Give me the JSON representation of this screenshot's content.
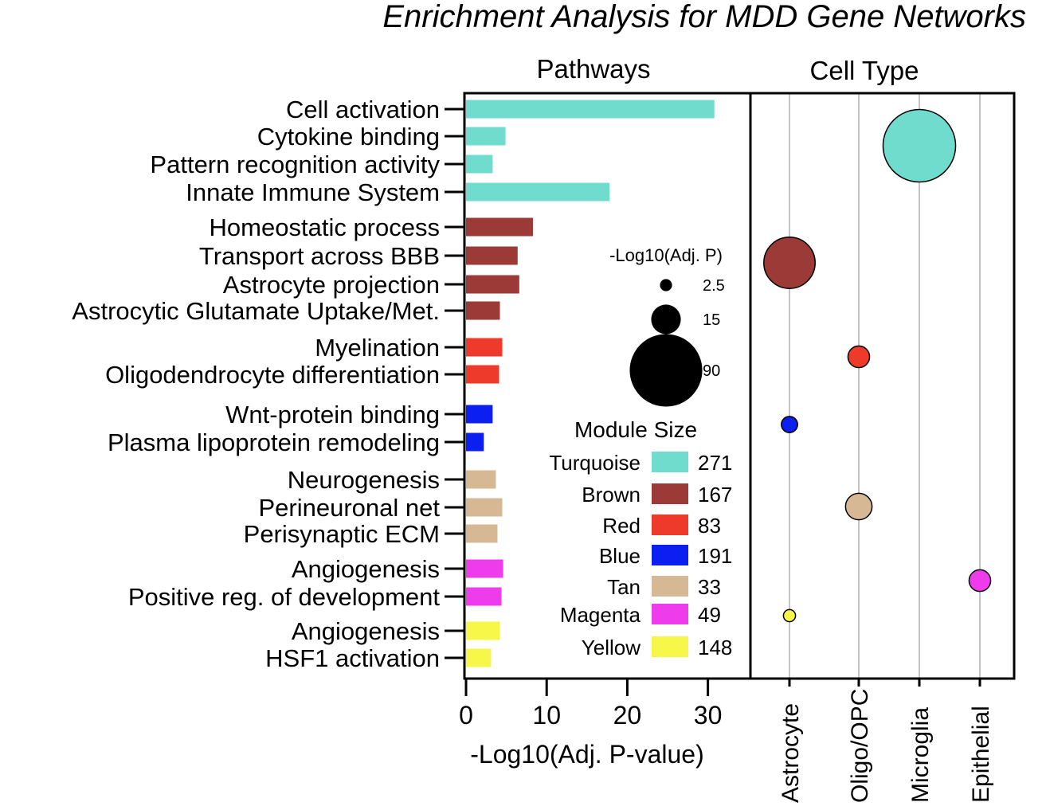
{
  "chart_data": {
    "type": "bar",
    "title": "Enrichment Analysis for MDD Gene Networks",
    "panels": {
      "pathways": {
        "title": "Pathways",
        "xlabel": "-Log10(Adj. P-value)",
        "xlim": [
          0,
          35
        ],
        "xticks": [
          "0",
          "10",
          "20",
          "30"
        ],
        "categories": [
          "Cell activation",
          "Cytokine binding",
          "Pattern recognition activity",
          "Innate Immune System",
          "Homeostatic process",
          "Transport across BBB",
          "Astrocyte projection",
          "Astrocytic Glutamate Uptake/Met.",
          "Myelination",
          "Oligodendrocyte differentiation",
          "Wnt-protein binding",
          "Plasma lipoprotein remodeling",
          "Neurogenesis",
          "Perineuronal net",
          "Perisynaptic ECM",
          "Angiogenesis",
          "Positive reg. of development",
          "Angiogenesis",
          "HSF1 activation"
        ],
        "values": [
          30.8,
          4.9,
          3.3,
          17.8,
          8.3,
          6.4,
          6.6,
          4.2,
          4.5,
          4.1,
          3.3,
          2.2,
          3.7,
          4.5,
          3.9,
          4.6,
          4.4,
          4.2,
          3.1
        ],
        "modules": [
          "Turquoise",
          "Turquoise",
          "Turquoise",
          "Turquoise",
          "Brown",
          "Brown",
          "Brown",
          "Brown",
          "Red",
          "Red",
          "Blue",
          "Blue",
          "Tan",
          "Tan",
          "Tan",
          "Magenta",
          "Magenta",
          "Yellow",
          "Yellow"
        ]
      },
      "cell_type": {
        "title": "Cell Type",
        "categories": [
          "Astrocyte",
          "Oligo/OPC",
          "Microglia",
          "Epithelial"
        ],
        "bubbles": [
          {
            "module": "Turquoise",
            "cell_type": "Microglia",
            "neg_log10_adj_p": 90
          },
          {
            "module": "Brown",
            "cell_type": "Astrocyte",
            "neg_log10_adj_p": 45
          },
          {
            "module": "Red",
            "cell_type": "Oligo/OPC",
            "neg_log10_adj_p": 8
          },
          {
            "module": "Blue",
            "cell_type": "Astrocyte",
            "neg_log10_adj_p": 4.5
          },
          {
            "module": "Tan",
            "cell_type": "Oligo/OPC",
            "neg_log10_adj_p": 12
          },
          {
            "module": "Magenta",
            "cell_type": "Epithelial",
            "neg_log10_adj_p": 8
          },
          {
            "module": "Yellow",
            "cell_type": "Astrocyte",
            "neg_log10_adj_p": 2.5
          }
        ],
        "size_legend": {
          "title": "-Log10(Adj. P)",
          "entries": [
            {
              "value": 2.5,
              "label": "2.5"
            },
            {
              "value": 15,
              "label": "15"
            },
            {
              "value": 90,
              "label": "90"
            }
          ]
        }
      }
    },
    "module_legend": {
      "title": "Module Size",
      "entries": [
        {
          "name": "Turquoise",
          "size": "271",
          "color": "#6fdccd"
        },
        {
          "name": "Brown",
          "size": "167",
          "color": "#9b3a36"
        },
        {
          "name": "Red",
          "size": "83",
          "color": "#ee3a2a"
        },
        {
          "name": "Blue",
          "size": "191",
          "color": "#0a1ff0"
        },
        {
          "name": "Tan",
          "size": "33",
          "color": "#d6b895"
        },
        {
          "name": "Magenta",
          "size": "49",
          "color": "#ee3ced"
        },
        {
          "name": "Yellow",
          "size": "148",
          "color": "#f7f74a"
        }
      ]
    }
  }
}
